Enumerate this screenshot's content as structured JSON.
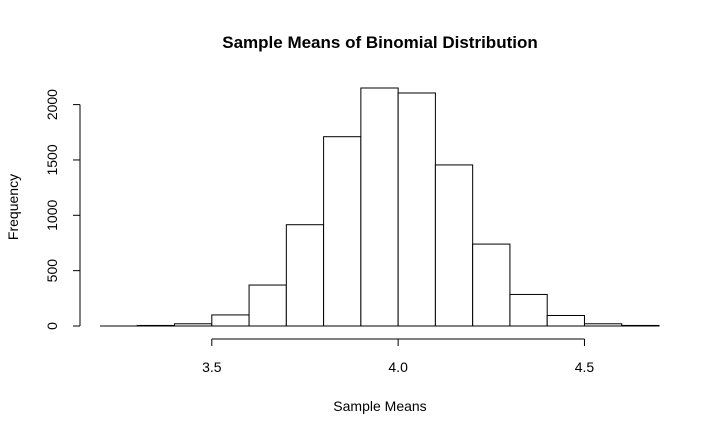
{
  "chart_data": {
    "type": "bar",
    "title": "Sample Means of Binomial Distribution",
    "xlabel": "Sample Means",
    "ylabel": "Frequency",
    "xlim": [
      3.2,
      4.7
    ],
    "ylim": [
      0,
      2150
    ],
    "x_ticks": [
      3.5,
      4.0,
      4.5
    ],
    "x_tick_labels": [
      "3.5",
      "4.0",
      "4.5"
    ],
    "y_ticks": [
      0,
      500,
      1000,
      1500,
      2000
    ],
    "y_tick_labels": [
      "0",
      "500",
      "1000",
      "1500",
      "2000"
    ],
    "bin_width": 0.1,
    "bins": [
      {
        "x0": 3.2,
        "x1": 3.3,
        "value": 0
      },
      {
        "x0": 3.3,
        "x1": 3.4,
        "value": 5
      },
      {
        "x0": 3.4,
        "x1": 3.5,
        "value": 20
      },
      {
        "x0": 3.5,
        "x1": 3.6,
        "value": 100
      },
      {
        "x0": 3.6,
        "x1": 3.7,
        "value": 370
      },
      {
        "x0": 3.7,
        "x1": 3.8,
        "value": 915
      },
      {
        "x0": 3.8,
        "x1": 3.9,
        "value": 1710
      },
      {
        "x0": 3.9,
        "x1": 4.0,
        "value": 2150
      },
      {
        "x0": 4.0,
        "x1": 4.1,
        "value": 2105
      },
      {
        "x0": 4.1,
        "x1": 4.2,
        "value": 1455
      },
      {
        "x0": 4.2,
        "x1": 4.3,
        "value": 740
      },
      {
        "x0": 4.3,
        "x1": 4.4,
        "value": 285
      },
      {
        "x0": 4.4,
        "x1": 4.5,
        "value": 95
      },
      {
        "x0": 4.5,
        "x1": 4.6,
        "value": 20
      },
      {
        "x0": 4.6,
        "x1": 4.7,
        "value": 5
      }
    ],
    "grid": false,
    "legend": "none"
  }
}
